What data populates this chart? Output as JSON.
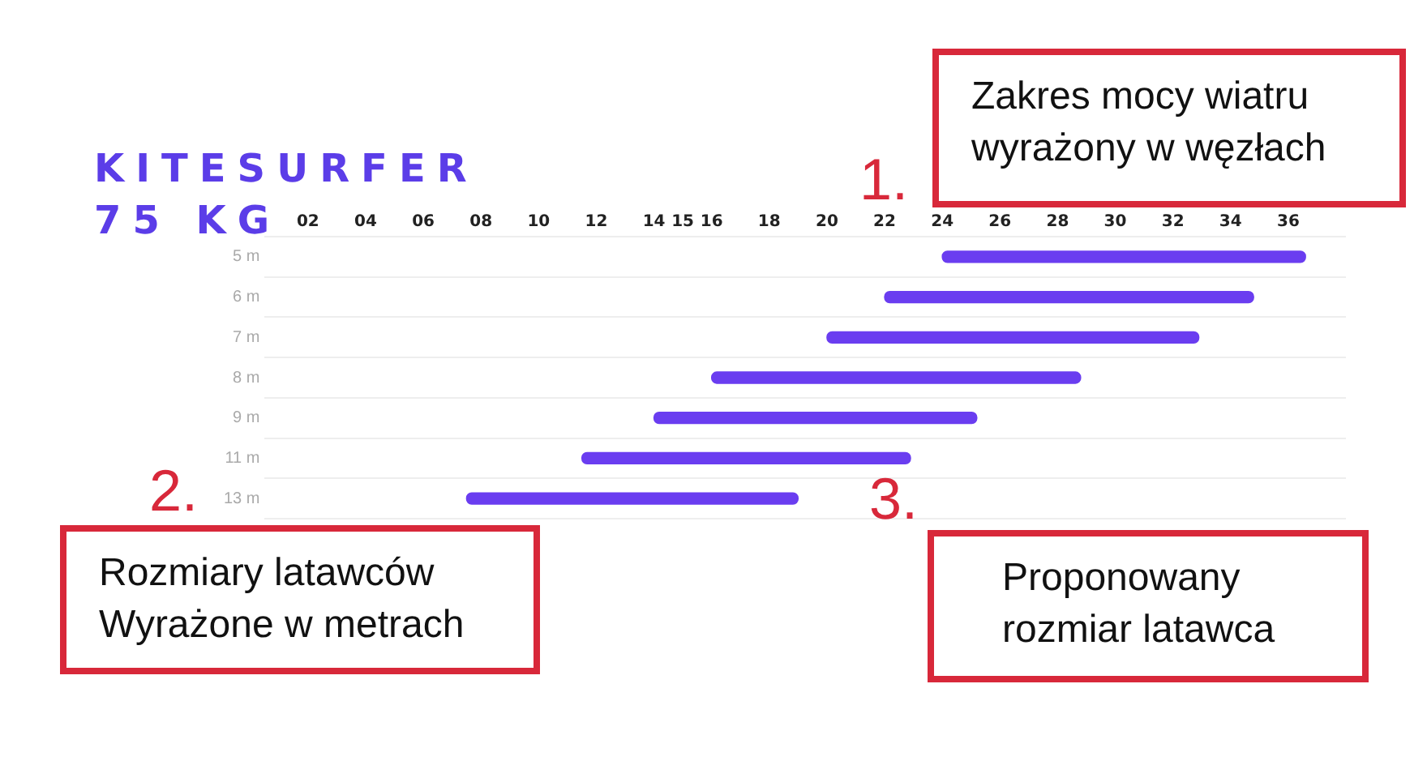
{
  "chart_data": {
    "type": "bar",
    "orientation": "horizontal",
    "title": "KITESURFER",
    "subtitle": "75 KG",
    "categories": [
      "5 m",
      "6 m",
      "7 m",
      "8 m",
      "9 m",
      "11 m",
      "13 m"
    ],
    "base": [
      24,
      22,
      20,
      16,
      14,
      11.5,
      7.5
    ],
    "values": [
      12.6,
      12.8,
      12.9,
      12.8,
      11.2,
      11.4,
      11.5
    ],
    "color": "#6a3df0",
    "xlim": [
      0.5,
      38
    ],
    "xticks": [
      {
        "value": 2,
        "label": "02"
      },
      {
        "value": 4,
        "label": "04"
      },
      {
        "value": 6,
        "label": "06"
      },
      {
        "value": 8,
        "label": "08"
      },
      10,
      12,
      14,
      15,
      16,
      18,
      20,
      22,
      24,
      26,
      28,
      30,
      32,
      34,
      36
    ],
    "grid": "y",
    "annotations": [
      "1.",
      "Zakres mocy wiatru\nwyrażony w węzłach",
      "2.",
      "Rozmiary latawców\nWyrażone w metrach",
      "3.",
      "Proponowany\nrozmiar latawca"
    ]
  }
}
